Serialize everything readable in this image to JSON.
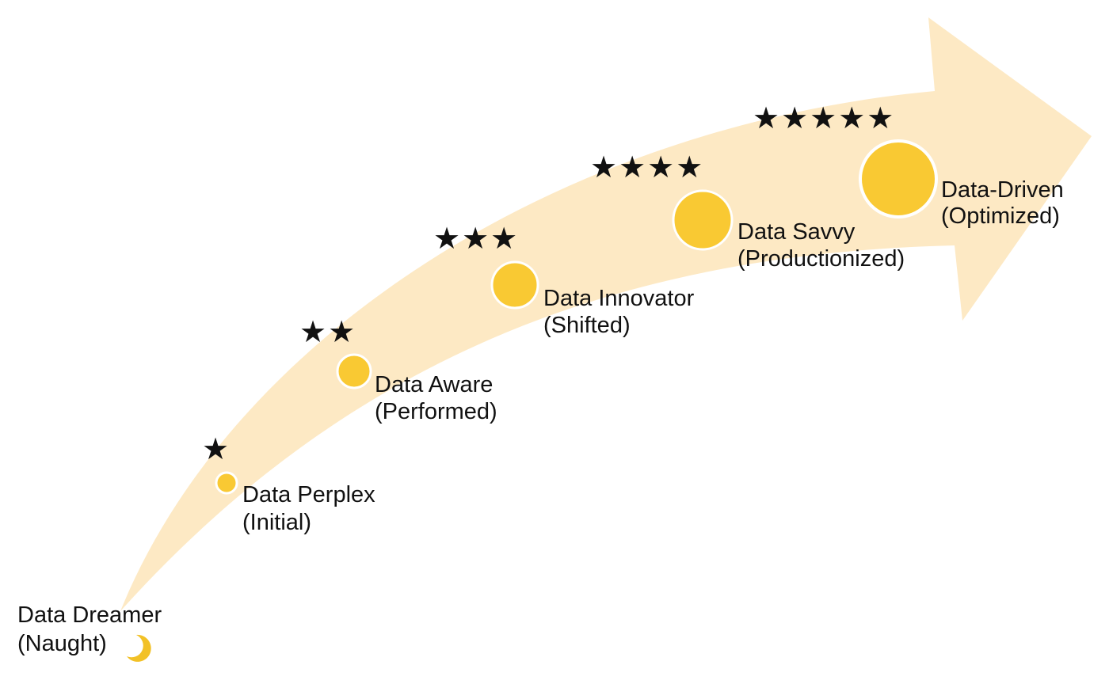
{
  "colors": {
    "arrow": "#fde9c4",
    "circle_fill": "#f9c933",
    "circle_stroke": "#ffffff",
    "moon": "#f2c127",
    "text": "#111111"
  },
  "stages": [
    {
      "name": "Data Dreamer",
      "level": "(Naught)",
      "stars": "",
      "stars_count": 0,
      "icon": "crescent-moon-icon"
    },
    {
      "name": "Data Perplex",
      "level": "(Initial)",
      "stars": "★",
      "stars_count": 1,
      "icon": "circle-marker-icon"
    },
    {
      "name": "Data Aware",
      "level": "(Performed)",
      "stars": "★★",
      "stars_count": 2,
      "icon": "circle-marker-icon"
    },
    {
      "name": "Data Innovator",
      "level": "(Shifted)",
      "stars": "★★★",
      "stars_count": 3,
      "icon": "circle-marker-icon"
    },
    {
      "name": "Data Savvy",
      "level": "(Productionized)",
      "stars": "★★★★",
      "stars_count": 4,
      "icon": "circle-marker-icon"
    },
    {
      "name": "Data-Driven",
      "level": "(Optimized)",
      "stars": "★★★★★",
      "stars_count": 5,
      "icon": "circle-marker-icon"
    }
  ]
}
